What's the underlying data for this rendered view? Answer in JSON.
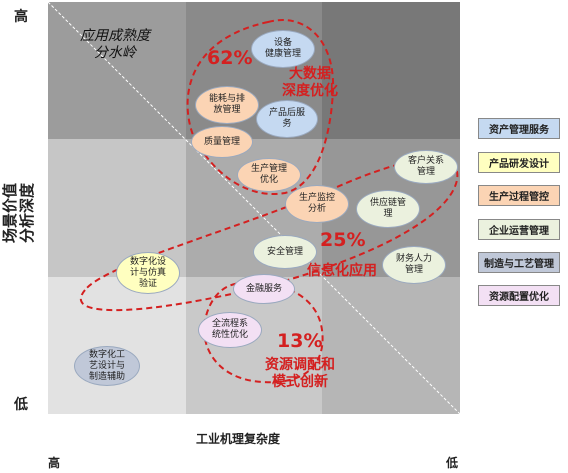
{
  "axis": {
    "y_title_line1": "场景价值",
    "y_title_line2": "分析深度",
    "y_high": "高",
    "y_low": "低",
    "x_title": "工业机理复杂度",
    "x_high": "高",
    "x_low": "低"
  },
  "annotation_watershed": {
    "line1": "应用成熟度",
    "line2": "分水岭"
  },
  "zones": [
    {
      "percent": "62%",
      "line1": "大数据",
      "line2": "深度优化"
    },
    {
      "percent": "25%",
      "line1": "信息化应用",
      "line2": ""
    },
    {
      "percent": "13%",
      "line1": "资源调配和",
      "line2": "模式创新"
    }
  ],
  "bubbles": [
    {
      "line1": "设备",
      "line2": "健康管理",
      "line3": "",
      "category": "asset"
    },
    {
      "line1": "能耗与排",
      "line2": "放管理",
      "line3": "",
      "category": "production"
    },
    {
      "line1": "产品后服",
      "line2": "务",
      "line3": "",
      "category": "asset"
    },
    {
      "line1": "质量管理",
      "line2": "",
      "line3": "",
      "category": "production"
    },
    {
      "line1": "生产管理",
      "line2": "优化",
      "line3": "",
      "category": "production"
    },
    {
      "line1": "客户关系",
      "line2": "管理",
      "line3": "",
      "category": "enterprise"
    },
    {
      "line1": "生产监控",
      "line2": "分析",
      "line3": "",
      "category": "production"
    },
    {
      "line1": "供应链管",
      "line2": "理",
      "line3": "",
      "category": "enterprise"
    },
    {
      "line1": "安全管理",
      "line2": "",
      "line3": "",
      "category": "enterprise"
    },
    {
      "line1": "财务人力",
      "line2": "管理",
      "line3": "",
      "category": "enterprise"
    },
    {
      "line1": "数字化设",
      "line2": "计与仿真",
      "line3": "验证",
      "category": "rnd"
    },
    {
      "line1": "金融服务",
      "line2": "",
      "line3": "",
      "category": "resource"
    },
    {
      "line1": "全流程系",
      "line2": "统性优化",
      "line3": "",
      "category": "resource"
    },
    {
      "line1": "数字化工",
      "line2": "艺设计与",
      "line3": "制造辅助",
      "category": "manufacturing"
    }
  ],
  "legend": [
    {
      "label": "资产管理服务",
      "color": "#c5d9f1"
    },
    {
      "label": "产品研发设计",
      "color": "#ffffc0"
    },
    {
      "label": "生产过程管控",
      "color": "#fbd4b4"
    },
    {
      "label": "企业运营管理",
      "color": "#ebf1de"
    },
    {
      "label": "制造与工艺管理",
      "color": "#c0c8d8"
    },
    {
      "label": "资源配置优化",
      "color": "#f3e0f4"
    }
  ]
}
